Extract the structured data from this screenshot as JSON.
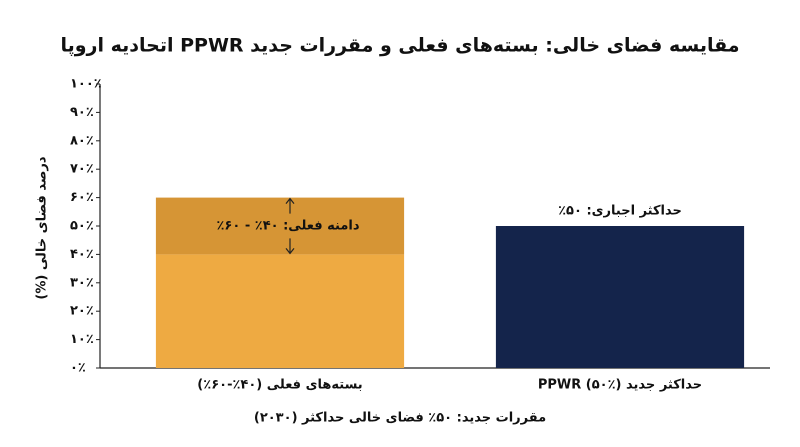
{
  "chart_data": {
    "type": "stacked-bar",
    "title": "مقایسه فضای خالی: بسته‌های فعلی و مقررات جدید PPWR اتحادیه اروپا",
    "y_label": "درصد فضای خالی (%)",
    "x_label": "مقررات جدید: ۵۰٪ فضای خالی حداکثر (۲۰۳۰)",
    "categories": [
      "بسته‌های فعلی (۴۰٪-۶۰٪)",
      "حداکثر جدید PPWR (۵۰٪)"
    ],
    "series": [
      {
        "values": [
          40,
          50
        ],
        "colors": [
          "#eeaa42",
          "#14244b"
        ]
      },
      {
        "values": [
          20,
          null
        ],
        "color": "#d69535"
      }
    ],
    "annotations": [
      "دامنه فعلی: ۴۰٪ - ۶۰٪",
      "حداکثر اجباری: ۵۰٪"
    ],
    "ylim": [
      0,
      100
    ],
    "yticks": [
      {
        "value": 0,
        "label": "۰٪"
      },
      {
        "value": 10,
        "label": "۱۰٪"
      },
      {
        "value": 20,
        "label": "۲۰٪"
      },
      {
        "value": 30,
        "label": "۳۰٪"
      },
      {
        "value": 40,
        "label": "۴۰٪"
      },
      {
        "value": 50,
        "label": "۵۰٪"
      },
      {
        "value": 60,
        "label": "۶۰٪"
      },
      {
        "value": 70,
        "label": "۷۰٪"
      },
      {
        "value": 80,
        "label": "۸۰٪"
      },
      {
        "value": 90,
        "label": "۹۰٪"
      },
      {
        "value": 100,
        "label": "۱۰۰٪"
      }
    ]
  }
}
